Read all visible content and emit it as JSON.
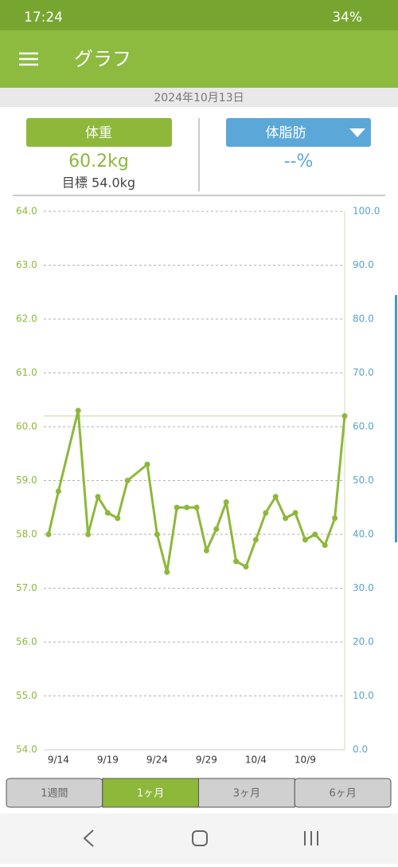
{
  "status_bar": {
    "time": "17:24",
    "battery": "34%"
  },
  "app_bar": {
    "title": "グラフ"
  },
  "date": "2024年10月13日",
  "summary": {
    "weight": {
      "label": "体重",
      "value": "60.2kg",
      "goal": "目標 54.0kg"
    },
    "body_fat": {
      "label": "体脂肪",
      "value": "--%"
    }
  },
  "chart_data": {
    "type": "line",
    "x": [
      "9/13",
      "9/14",
      "9/16",
      "9/17",
      "9/18",
      "9/19",
      "9/20",
      "9/21",
      "9/23",
      "9/24",
      "9/25",
      "9/26",
      "9/27",
      "9/28",
      "9/29",
      "9/30",
      "10/1",
      "10/2",
      "10/3",
      "10/4",
      "10/5",
      "10/6",
      "10/7",
      "10/8",
      "10/9",
      "10/10",
      "10/11",
      "10/12",
      "10/13"
    ],
    "series": [
      {
        "color": "#8db83a",
        "values": [
          58.0,
          58.8,
          60.3,
          58.0,
          58.7,
          58.4,
          58.3,
          59.0,
          59.3,
          58.0,
          57.3,
          58.5,
          58.5,
          58.5,
          57.7,
          58.1,
          58.6,
          57.5,
          57.4,
          57.9,
          58.4,
          58.7,
          58.3,
          58.4,
          57.9,
          58.0,
          57.8,
          58.3,
          60.2
        ]
      }
    ],
    "xlim": [
      "9/13",
      "10/13"
    ],
    "xticks": [
      "9/14",
      "9/19",
      "9/24",
      "9/29",
      "10/4",
      "10/9"
    ],
    "ylim": [
      54,
      64
    ],
    "yticks": [
      {
        "value": 54,
        "label": "54.0"
      },
      {
        "value": 55,
        "label": "55.0"
      },
      {
        "value": 56,
        "label": "56.0"
      },
      {
        "value": 57,
        "label": "57.0"
      },
      {
        "value": 58,
        "label": "58.0"
      },
      {
        "value": 59,
        "label": "59.0"
      },
      {
        "value": 60,
        "label": "60.0"
      },
      {
        "value": 61,
        "label": "61.0"
      },
      {
        "value": 62,
        "label": "62.0"
      },
      {
        "value": 63,
        "label": "63.0"
      },
      {
        "value": 64,
        "label": "64.0"
      }
    ],
    "y2lim": [
      0,
      100
    ],
    "y2ticks": [
      {
        "value": 0,
        "label": "0.0"
      },
      {
        "value": 10,
        "label": "10.0"
      },
      {
        "value": 20,
        "label": "20.0"
      },
      {
        "value": 30,
        "label": "30.0"
      },
      {
        "value": 40,
        "label": "40.0"
      },
      {
        "value": 50,
        "label": "50.0"
      },
      {
        "value": 60,
        "label": "60.0"
      },
      {
        "value": 70,
        "label": "70.0"
      },
      {
        "value": 80,
        "label": "80.0"
      },
      {
        "value": 90,
        "label": "90.0"
      },
      {
        "value": 100,
        "label": "100.0"
      }
    ],
    "y2color": "#5ba3c9",
    "grid": true
  },
  "tabs": {
    "items": [
      "1週間",
      "1ヶ月",
      "3ヶ月",
      "6ヶ月"
    ],
    "selected": 1
  }
}
